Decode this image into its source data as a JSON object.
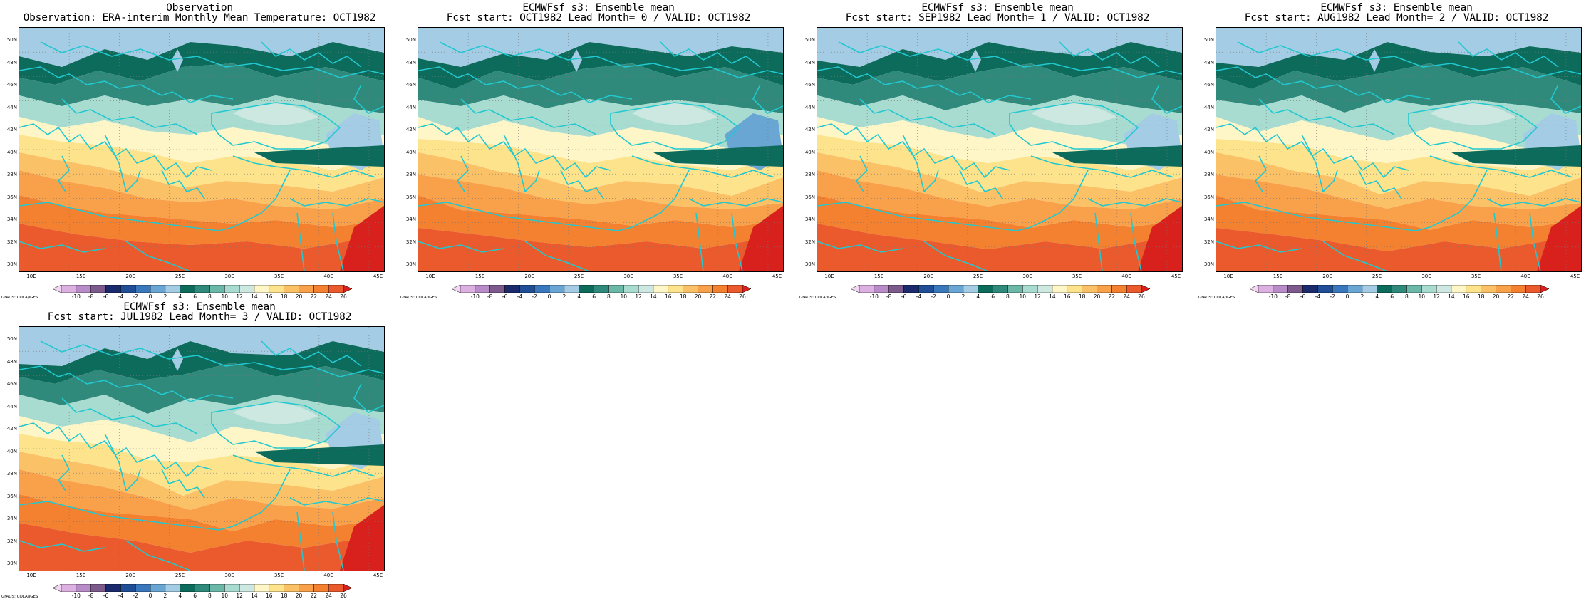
{
  "panels": [
    {
      "title1": "Observation",
      "title2": "Observation: ERA-interim Monthly Mean Temperature: OCT1982",
      "variant": 0
    },
    {
      "title1": "ECMWFsf s3: Ensemble mean",
      "title2": "Fcst start: OCT1982  Lead Month= 0 / VALID: OCT1982",
      "variant": 1
    },
    {
      "title1": "ECMWFsf s3: Ensemble mean",
      "title2": "Fcst start: SEP1982  Lead Month= 1 / VALID: OCT1982",
      "variant": 2
    },
    {
      "title1": "ECMWFsf s3: Ensemble mean",
      "title2": "Fcst start: AUG1982  Lead Month= 2 / VALID: OCT1982",
      "variant": 3
    },
    {
      "title1": "ECMWFsf s3: Ensemble mean",
      "title2": "Fcst start: JUL1982  Lead Month= 3 / VALID: OCT1982",
      "variant": 4
    }
  ],
  "lat_labels": [
    "50N",
    "48N",
    "46N",
    "44N",
    "42N",
    "40N",
    "38N",
    "36N",
    "34N",
    "32N",
    "30N"
  ],
  "lon_labels": [
    "10E",
    "15E",
    "20E",
    "25E",
    "30E",
    "35E",
    "40E",
    "45E"
  ],
  "colorbar_labels": [
    "-10",
    "-8",
    "-6",
    "-4",
    "-2",
    "0",
    "2",
    "4",
    "6",
    "8",
    "10",
    "12",
    "14",
    "16",
    "18",
    "20",
    "22",
    "24",
    "26"
  ],
  "colorbar_colors": [
    "#f0d6f0",
    "#dcb0e0",
    "#b88cc8",
    "#7d5a8c",
    "#1a2a6c",
    "#1f4e96",
    "#3a78be",
    "#6aa6d4",
    "#a4cce4",
    "#0d6b5c",
    "#2f8a7c",
    "#6cb8a8",
    "#a8dcd0",
    "#cce8e0",
    "#fff6c8",
    "#fde48c",
    "#fbc166",
    "#f9a14a",
    "#f3812f",
    "#ea5a2c",
    "#d8201c"
  ],
  "credit": "GrADS: COLA/IGES"
}
